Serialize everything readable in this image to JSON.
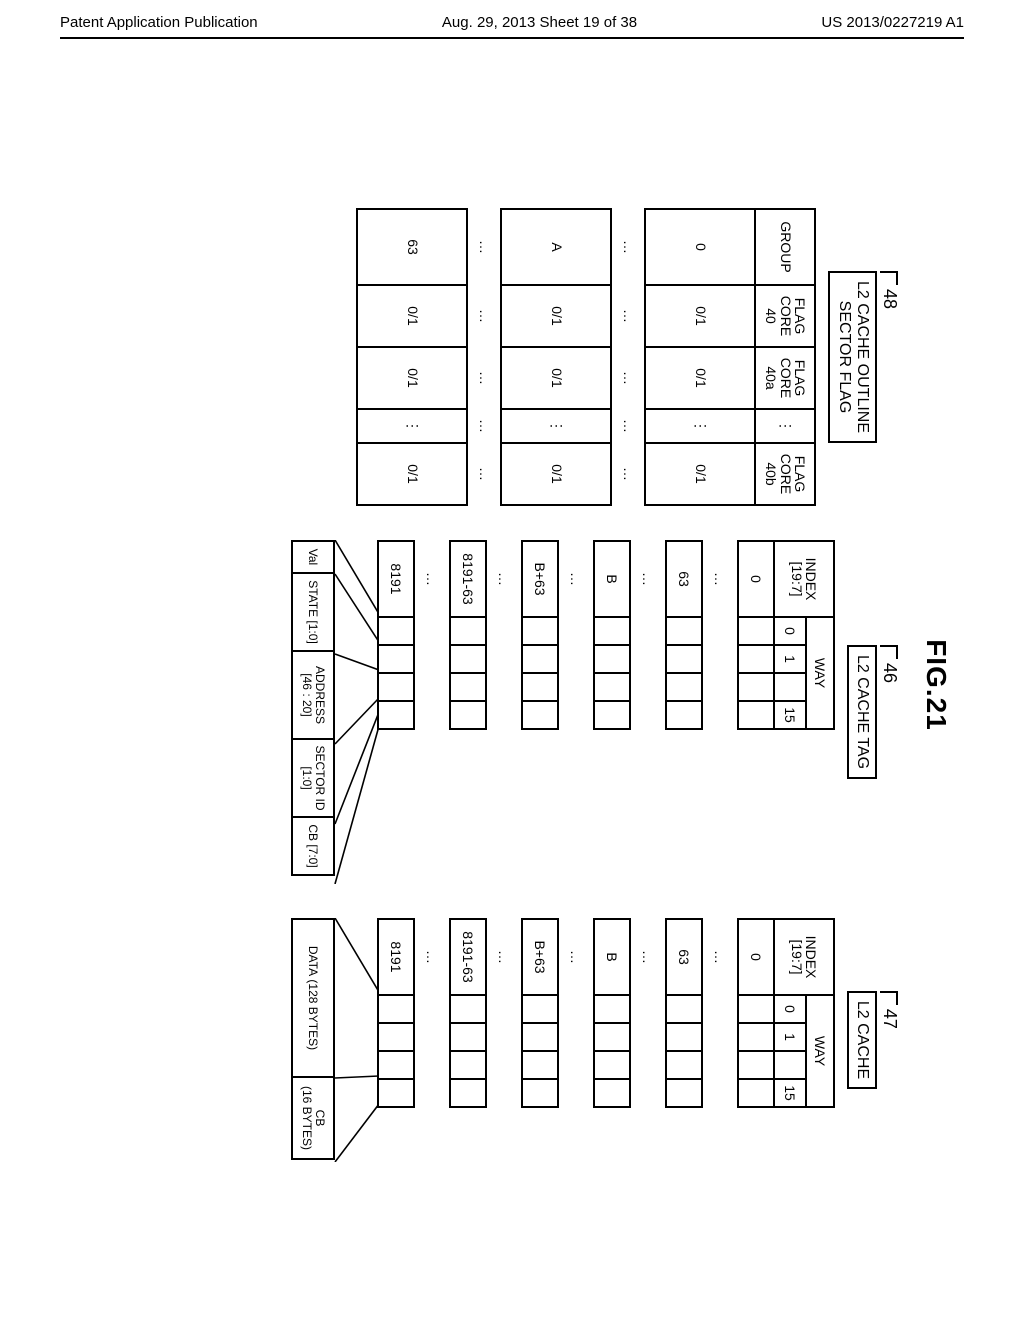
{
  "header": {
    "left": "Patent Application Publication",
    "mid": "Aug. 29, 2013  Sheet 19 of 38",
    "right": "US 2013/0227219 A1"
  },
  "figure": {
    "title": "FIG.21"
  },
  "sector": {
    "ref": "48",
    "caption": "L2 CACHE OUTLINE\nSECTOR FLAG",
    "headers": [
      "GROUP",
      "FLAG\nCORE\n40",
      "FLAG\nCORE\n40a",
      "⋮",
      "FLAG\nCORE\n40b"
    ],
    "rows": [
      {
        "group": "0",
        "c1": "0/1",
        "c2": "0/1",
        "c3": "⋮",
        "c4": "0/1"
      },
      {
        "group": "…",
        "c1": "…",
        "c2": "…",
        "c3": "…",
        "c4": "…",
        "gap": true
      },
      {
        "group": "A",
        "c1": "0/1",
        "c2": "0/1",
        "c3": "⋮",
        "c4": "0/1"
      },
      {
        "group": "…",
        "c1": "…",
        "c2": "…",
        "c3": "…",
        "c4": "…",
        "gap": true
      },
      {
        "group": "63",
        "c1": "0/1",
        "c2": "0/1",
        "c3": "⋮",
        "c4": "0/1"
      }
    ]
  },
  "tag": {
    "ref": "46",
    "caption": "L2 CACHE TAG",
    "index_header": "INDEX\n[19:7]",
    "way_header": "WAY",
    "way_sub": [
      "0",
      "1",
      "15"
    ],
    "index_rows": [
      "0",
      "…",
      "63",
      "…",
      "B",
      "…",
      "B+63",
      "…",
      "8191-63",
      "…",
      "8191"
    ],
    "fan_labels": [
      "Val",
      "STATE [1:0]",
      "ADDRESS\n[46 : 20]",
      "SECTOR ID\n[1:0]",
      "CB [7:0]"
    ],
    "fan_widths": [
      34,
      80,
      90,
      80,
      60
    ]
  },
  "cache": {
    "ref": "47",
    "caption": "L2 CACHE",
    "index_header": "INDEX\n[19:7]",
    "way_header": "WAY",
    "way_sub": [
      "0",
      "1",
      "15"
    ],
    "index_rows": [
      "0",
      "…",
      "63",
      "…",
      "B",
      "…",
      "B+63",
      "…",
      "8191-63",
      "…",
      "8191"
    ],
    "fan_labels": [
      "DATA (128 BYTES)",
      "CB\n(16 BYTES)"
    ],
    "fan_widths": [
      160,
      84
    ]
  },
  "style": {
    "bg": "#ffffff",
    "line": "#000000",
    "dash": "#888888"
  }
}
